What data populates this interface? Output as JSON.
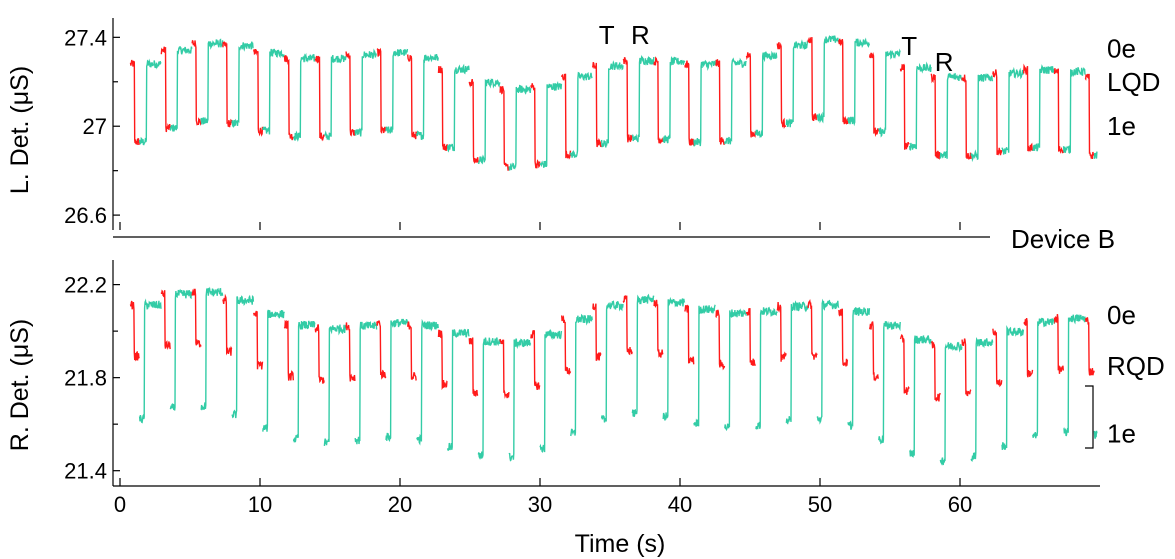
{
  "colors": {
    "segment_a": "#ff1a1a",
    "segment_b": "#33cca6",
    "axis": "#000000",
    "background": "#ffffff"
  },
  "chart_data": [
    {
      "type": "line",
      "panel": "top",
      "xlabel": "",
      "ylabel": "L. Det. (μS)",
      "xlim": [
        -0.5,
        70
      ],
      "ylim": [
        26.56,
        27.46
      ],
      "yticks": [
        26.6,
        27,
        27.4
      ],
      "ytick_labels": [
        "26.6",
        "27",
        "27.4"
      ],
      "xticks": [
        0,
        10,
        20,
        30,
        40,
        50,
        60
      ],
      "grid": false,
      "cycle_period_s": 2.2,
      "level_high_uS": 27.28,
      "level_low_uS": 26.93,
      "series_colors": [
        "#ff1a1a",
        "#33cca6"
      ],
      "annotations": [
        {
          "label": "0e",
          "x": 70.5,
          "y": 27.35
        },
        {
          "label": "LQD",
          "x": 70.5,
          "y": 27.2
        },
        {
          "label": "1e",
          "x": 70.5,
          "y": 27.0
        },
        {
          "label": "T",
          "x": 34.2,
          "y": 27.41
        },
        {
          "label": "R",
          "x": 36.5,
          "y": 27.41
        },
        {
          "label": "T",
          "x": 55.8,
          "y": 27.36
        },
        {
          "label": "R",
          "x": 58.2,
          "y": 27.29
        }
      ],
      "panel_label": "Device B"
    },
    {
      "type": "line",
      "panel": "bottom",
      "xlabel": "Time (s)",
      "ylabel": "R. Det. (μS)",
      "xlim": [
        -0.5,
        70
      ],
      "ylim": [
        21.36,
        22.28
      ],
      "yticks": [
        21.4,
        21.8,
        22.2
      ],
      "ytick_labels": [
        "21.4",
        "21.8",
        "22.2"
      ],
      "xticks": [
        0,
        10,
        20,
        30,
        40,
        50,
        60
      ],
      "xtick_labels": [
        "0",
        "10",
        "20",
        "30",
        "40",
        "50",
        "60"
      ],
      "grid": false,
      "cycle_period_s": 2.2,
      "level_high_uS": 22.05,
      "level_mid_uS": 21.83,
      "level_low_uS": 21.56,
      "series_colors": [
        "#ff1a1a",
        "#33cca6"
      ],
      "annotations": [
        {
          "label": "0e",
          "x": 70.5,
          "y": 22.07
        },
        {
          "label": "RQD",
          "x": 70.5,
          "y": 21.85
        },
        {
          "label": "1e",
          "x": 70.5,
          "y": 21.56
        }
      ]
    }
  ]
}
